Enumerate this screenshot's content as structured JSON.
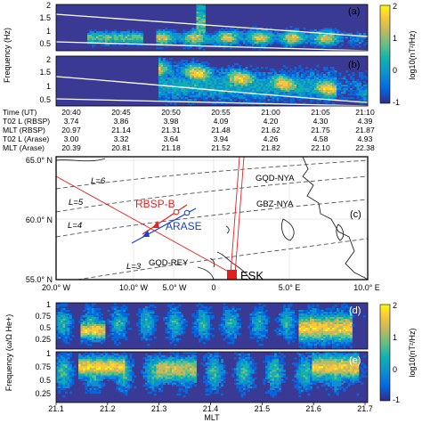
{
  "colors": {
    "spectrogram_background": "#3a3a94",
    "orbit_red": "#e8201f",
    "orbit_blue": "#1540d8",
    "map_lines": "#555555",
    "colormap": [
      "#352a87",
      "#0268e1",
      "#108ed2",
      "#0fb1b0",
      "#65be86",
      "#c4b95c",
      "#fac73a",
      "#f9fb0e"
    ]
  },
  "panel_a": {
    "tag": "(a)",
    "ylabel": "Frequency (Hz)",
    "yticks": [
      "2",
      "1.5",
      "1",
      "0.5"
    ]
  },
  "panel_b": {
    "tag": "(b)",
    "yticks": [
      "2",
      "1.5",
      "1",
      "0.5"
    ]
  },
  "colorbar_top": {
    "label": "log10(nT²/Hz)",
    "ticks": [
      "2",
      "1",
      "0",
      "-1"
    ]
  },
  "table": {
    "row_labels": [
      "Time (UT)",
      "T02 L (RBSP)",
      "MLT (RBSP)",
      "T02 L (Arase)",
      "MLT (Arase)"
    ],
    "columns": [
      [
        "20:40",
        "3.74",
        "20.97",
        "3.00",
        "20.39"
      ],
      [
        "20:45",
        "3.86",
        "21.14",
        "3.32",
        "20.81"
      ],
      [
        "20:50",
        "3.98",
        "21.31",
        "3.64",
        "21.18"
      ],
      [
        "20:55",
        "4.09",
        "21.48",
        "3.94",
        "21.52"
      ],
      [
        "21:00",
        "4.20",
        "21.62",
        "4.26",
        "21.82"
      ],
      [
        "21:05",
        "4.30",
        "21.75",
        "4.58",
        "22.10"
      ],
      [
        "21:10",
        "4.39",
        "21.87",
        "4.93",
        "22.38"
      ]
    ]
  },
  "map": {
    "tag": "(c)",
    "lat_ticks": [
      "65.0° N",
      "60.0° N",
      "55.0° N"
    ],
    "lon_ticks": [
      "20.0° W",
      "10.0° W",
      "5.0° W",
      "0",
      "5.0° E",
      "10.0° E"
    ],
    "l_shells": [
      "L=6",
      "L=5",
      "L=4",
      "L=3"
    ],
    "stations": [
      "GQD-NYA",
      "GBZ-NYA",
      "GQD-REY",
      "ESK"
    ],
    "satellites": [
      "RBSP-B",
      "ARASE"
    ]
  },
  "panel_d": {
    "tag": "(d)",
    "yticks": [
      "1",
      "0.75",
      "0.5",
      "0.25"
    ]
  },
  "panel_e": {
    "tag": "(e)",
    "yticks": [
      "1",
      "0.75",
      "0.5",
      "0.25"
    ],
    "ylabel": "Frequency (ω/Ω He+)"
  },
  "colorbar_bottom": {
    "label": "log10(nT²/Hz)",
    "ticks": [
      "2",
      "1",
      "0",
      "-1"
    ]
  },
  "mlt_axis": {
    "label": "MLT",
    "ticks": [
      "21.1",
      "21.2",
      "21.3",
      "21.4",
      "21.5",
      "21.6",
      "21.7"
    ]
  }
}
